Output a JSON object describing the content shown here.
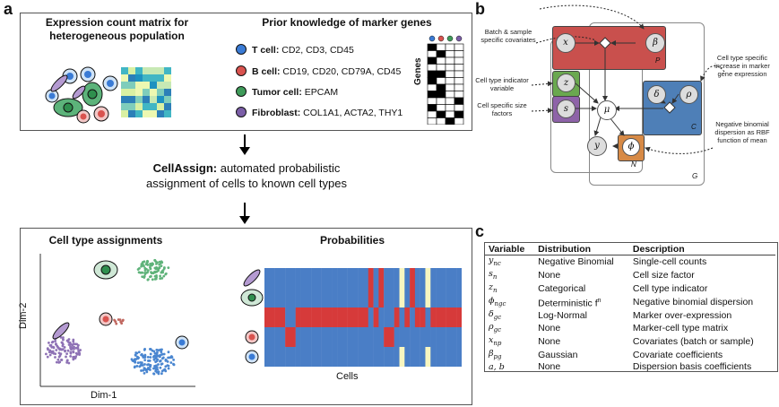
{
  "panel_a": {
    "label": "a",
    "top": {
      "count_title": "Expression count matrix for heterogeneous population",
      "prior_title": "Prior knowledge of marker genes",
      "markers": [
        {
          "cell": "T cell:",
          "genes": "CD2, CD3, CD45",
          "color": "#3a7bd5"
        },
        {
          "cell": "B cell:",
          "genes": "CD19, CD20, CD79A, CD45",
          "color": "#d9534f"
        },
        {
          "cell": "Tumor cell:",
          "genes": "EPCAM",
          "color": "#3f9b5a"
        },
        {
          "cell": "Fibroblast:",
          "genes": "COL1A1, ACTA2, THY1",
          "color": "#7b5ea7"
        }
      ],
      "genes_axis": "Genes",
      "marker_matrix": [
        [
          1,
          0,
          0,
          0
        ],
        [
          0,
          1,
          0,
          0
        ],
        [
          1,
          0,
          0,
          0
        ],
        [
          0,
          0,
          0,
          0
        ],
        [
          1,
          1,
          0,
          0
        ],
        [
          1,
          0,
          0,
          0
        ],
        [
          0,
          1,
          0,
          0
        ],
        [
          1,
          1,
          0,
          0
        ],
        [
          0,
          0,
          0,
          1
        ],
        [
          1,
          0,
          0,
          0
        ],
        [
          0,
          1,
          0,
          1
        ],
        [
          0,
          0,
          1,
          0
        ]
      ]
    },
    "cellassign_name": "CellAssign:",
    "cellassign_desc_1": "automated probabilistic",
    "cellassign_desc_2": "assignment of cells to known cell types",
    "bottom": {
      "assign_title": "Cell type assignments",
      "prob_title": "Probabilities",
      "ylabel": "Dim-2",
      "xlabel": "Dim-1",
      "cells_label": "Cells",
      "rows": [
        "BBBBBBBBBBBBBBBBBBBBRBRBBBYBRBBYBBBBBB",
        "BBBBBBBBBBBBBBBBBBBBRBRBBBYBRBBYBBBBBB",
        "RRRRBBRRRRRRRRRRRRRRBRBBBRBRBRRBRRRRRR",
        "BBBBRRBBBBBBBBBBBBBBBBBRRBBBBBBBBBBBBB",
        "BBBBBBBBBBBBBBBBBBBBBBBBBBYBBBBYBBBBBB"
      ]
    }
  },
  "panel_b": {
    "label": "b",
    "side_labels": {
      "batch": "Batch & sample specific covariates",
      "indicator": "Cell type indicator variable",
      "size": "Cell specific size factors",
      "increase": "Cell type specific increase in marker gene expression",
      "nb": "Negative binomial dispersion as RBF function of mean"
    },
    "nodes": {
      "x": "x",
      "beta": "β",
      "z": "z",
      "s": "s",
      "mu": "μ",
      "y": "y",
      "phi": "ϕ",
      "delta": "δ",
      "rho": "ρ"
    },
    "plates": {
      "P": "P",
      "C": "C",
      "N": "N",
      "G": "G"
    },
    "colors": {
      "red": "#c9504d",
      "green": "#6aa84f",
      "purple": "#8e63a8",
      "blue": "#4e7fb7",
      "orange": "#d78a46"
    }
  },
  "panel_c": {
    "label": "c",
    "headers": [
      "Variable",
      "Distribution",
      "Description"
    ],
    "rows": [
      [
        "y_nc",
        "Negative Binomial",
        "Single-cell counts"
      ],
      [
        "s_n",
        "None",
        "Cell size factor"
      ],
      [
        "z_n",
        "Categorical",
        "Cell type indicator"
      ],
      [
        "ϕ_ngc",
        "Deterministic f",
        "Negative binomial dispersion"
      ],
      [
        "δ_gc",
        "Log-Normal",
        "Marker over-expression"
      ],
      [
        "ρ_gc",
        "None",
        "Marker-cell type matrix"
      ],
      [
        "x_np",
        "None",
        "Covariates (batch or sample)"
      ],
      [
        "β_pg",
        "Gaussian",
        "Covariate coefficients"
      ],
      [
        "a, b",
        "None",
        "Dispersion basis coefficients"
      ]
    ],
    "superscript": "n"
  }
}
